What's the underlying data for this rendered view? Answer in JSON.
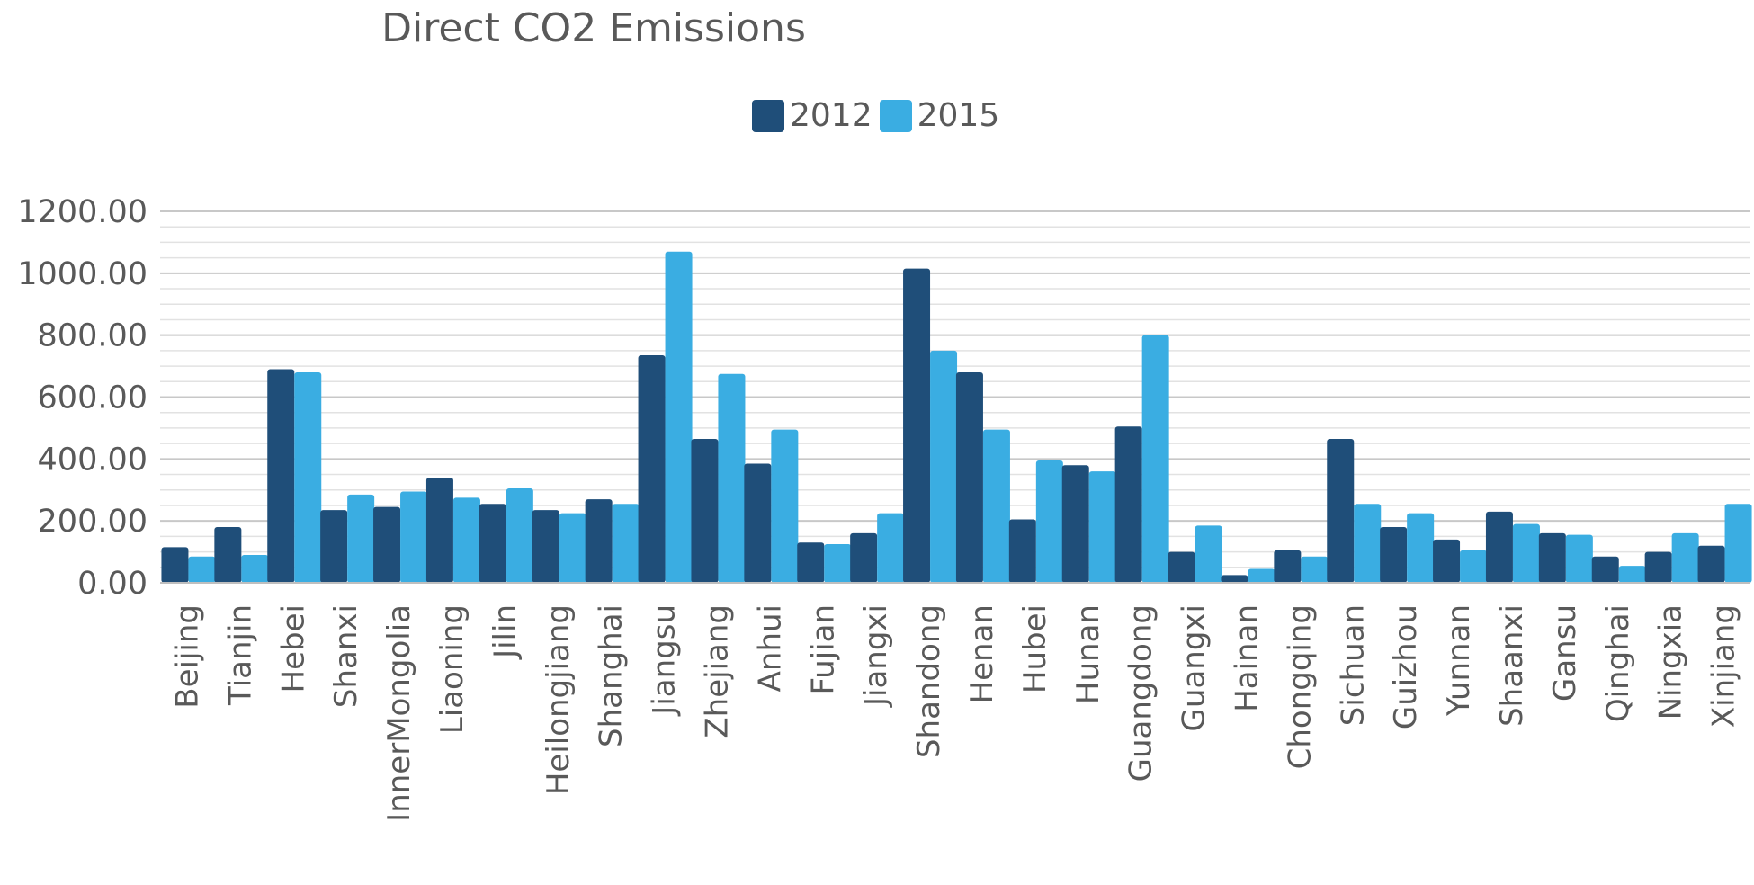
{
  "chart_data": {
    "type": "bar",
    "title": "Direct CO2 Emissions",
    "xlabel": "",
    "ylabel": "",
    "ylim": [
      0,
      1200
    ],
    "yticks": [
      "0.00",
      "200.00",
      "400.00",
      "600.00",
      "800.00",
      "1000.00",
      "1200.00"
    ],
    "legend_position": "top-center",
    "grid": true,
    "categories": [
      "Beijing",
      "Tianjin",
      "Hebei",
      "Shanxi",
      "InnerMongolia",
      "Liaoning",
      "Jilin",
      "Heilongjiang",
      "Shanghai",
      "Jiangsu",
      "Zhejiang",
      "Anhui",
      "Fujian",
      "Jiangxi",
      "Shandong",
      "Henan",
      "Hubei",
      "Hunan",
      "Guangdong",
      "Guangxi",
      "Hainan",
      "Chongqing",
      "Sichuan",
      "Guizhou",
      "Yunnan",
      "Shaanxi",
      "Gansu",
      "Qinghai",
      "Ningxia",
      "Xinjiang"
    ],
    "series": [
      {
        "name": "2012",
        "color": "#1F4E79",
        "values": [
          115,
          180,
          690,
          235,
          245,
          340,
          255,
          235,
          270,
          735,
          465,
          385,
          130,
          160,
          1015,
          680,
          205,
          380,
          505,
          100,
          25,
          105,
          465,
          180,
          140,
          230,
          160,
          85,
          100,
          120
        ]
      },
      {
        "name": "2015",
        "color": "#3AADE2",
        "values": [
          85,
          90,
          680,
          285,
          295,
          275,
          305,
          225,
          255,
          1070,
          675,
          495,
          125,
          225,
          750,
          495,
          395,
          360,
          800,
          185,
          45,
          85,
          255,
          225,
          105,
          190,
          155,
          55,
          160,
          255
        ]
      }
    ]
  }
}
